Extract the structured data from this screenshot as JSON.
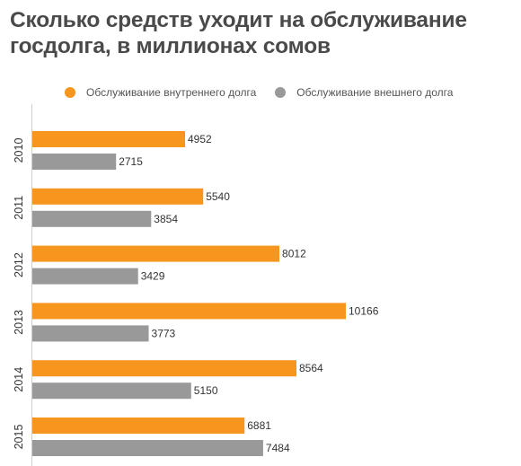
{
  "title": "Сколько средств уходит на обслуживание госдолга, в миллионах сомов",
  "legend": {
    "items": [
      {
        "label": "Обслуживание внутреннего долга",
        "color": "#f7961e"
      },
      {
        "label": "Обслуживание внешнего долга",
        "color": "#999999"
      }
    ]
  },
  "chart_data": {
    "type": "bar",
    "orientation": "horizontal",
    "categories": [
      "2010",
      "2011",
      "2012",
      "2013",
      "2014",
      "2015"
    ],
    "series": [
      {
        "name": "Обслуживание внутреннего долга",
        "color": "#f7961e",
        "values": [
          4952,
          5540,
          8012,
          10166,
          8564,
          6881
        ]
      },
      {
        "name": "Обслуживание внешнего долга",
        "color": "#999999",
        "values": [
          2715,
          3854,
          3429,
          3773,
          5150,
          7484
        ]
      }
    ],
    "xlim": [
      0,
      10166
    ],
    "grid": false,
    "legend_position": "top"
  }
}
